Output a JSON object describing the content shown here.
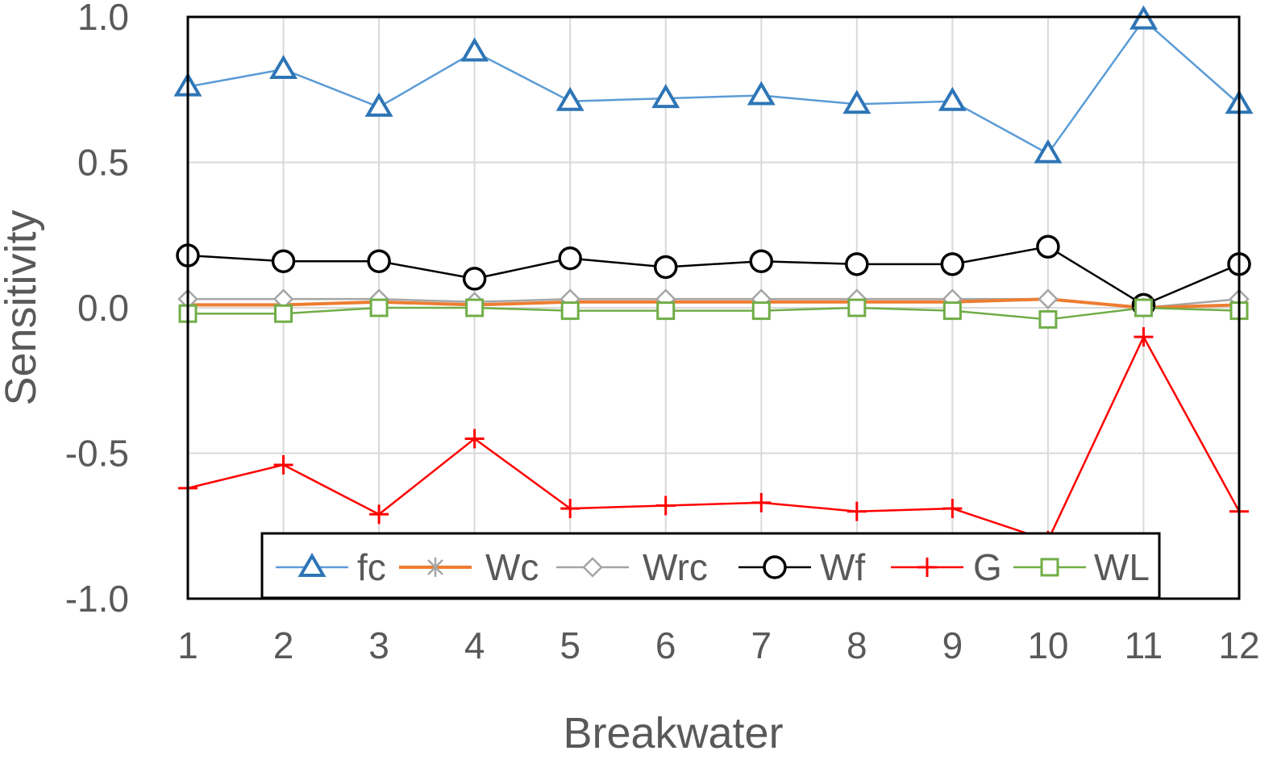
{
  "chart_data": {
    "type": "line",
    "title": "",
    "xlabel": "Breakwater",
    "ylabel": "Sensitivity",
    "x": [
      1,
      2,
      3,
      4,
      5,
      6,
      7,
      8,
      9,
      10,
      11,
      12
    ],
    "xlim": [
      1,
      12
    ],
    "ylim": [
      -1.0,
      1.0
    ],
    "yticks": [
      1.0,
      0.5,
      0.0,
      -0.5,
      -1.0
    ],
    "ytick_labels": [
      "1.0",
      "0.5",
      "0.0",
      "-0.5",
      "-1.0"
    ],
    "grid": true,
    "legend_position": "bottom",
    "series": [
      {
        "name": "fc",
        "marker": "triangle",
        "color": "#5b9bd5",
        "marker_color": "#2e75b6",
        "values": [
          0.76,
          0.82,
          0.69,
          0.88,
          0.71,
          0.72,
          0.73,
          0.7,
          0.71,
          0.53,
          0.99,
          0.7
        ]
      },
      {
        "name": "Wc",
        "marker": "asterisk",
        "color": "#ed7d31",
        "marker_color": "#a5a5a5",
        "values": [
          0.01,
          0.01,
          0.02,
          0.01,
          0.02,
          0.02,
          0.02,
          0.02,
          0.02,
          0.03,
          0.0,
          0.01
        ]
      },
      {
        "name": "Wrc",
        "marker": "diamond",
        "color": "#a5a5a5",
        "marker_color": "#a5a5a5",
        "values": [
          0.03,
          0.03,
          0.03,
          0.02,
          0.03,
          0.03,
          0.03,
          0.03,
          0.03,
          0.03,
          0.0,
          0.03
        ]
      },
      {
        "name": "Wf",
        "marker": "circle",
        "color": "#000000",
        "marker_color": "#000000",
        "values": [
          0.18,
          0.16,
          0.16,
          0.1,
          0.17,
          0.14,
          0.16,
          0.15,
          0.15,
          0.21,
          0.01,
          0.15
        ]
      },
      {
        "name": "G",
        "marker": "plus",
        "color": "#ff0000",
        "marker_color": "#ff0000",
        "values": [
          -0.62,
          -0.54,
          -0.71,
          -0.45,
          -0.69,
          -0.68,
          -0.67,
          -0.7,
          -0.69,
          -0.8,
          -0.1,
          -0.7
        ]
      },
      {
        "name": "WL",
        "marker": "square",
        "color": "#70ad47",
        "marker_color": "#70ad47",
        "values": [
          -0.02,
          -0.02,
          0.0,
          0.0,
          -0.01,
          -0.01,
          -0.01,
          0.0,
          -0.01,
          -0.04,
          0.0,
          -0.01
        ]
      }
    ]
  }
}
